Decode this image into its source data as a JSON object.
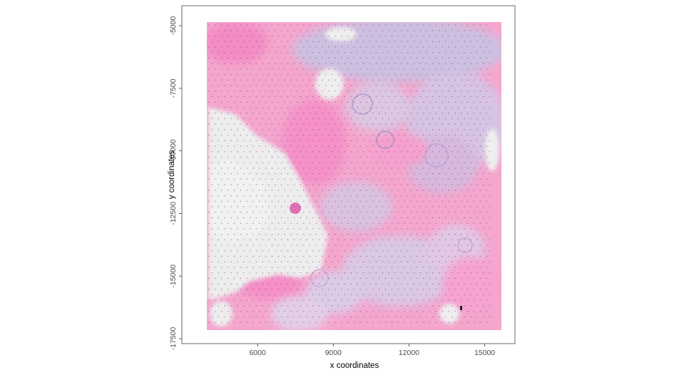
{
  "chart_data": {
    "type": "scatter",
    "title": "",
    "xlabel": "x coordinates",
    "ylabel": "y coordinates",
    "xlim": [
      3000,
      16200
    ],
    "ylim": [
      -17700,
      -4200
    ],
    "x_ticks": [
      6000,
      9000,
      12000,
      15000
    ],
    "y_ticks": [
      -5000,
      -7500,
      -10000,
      -12500,
      -15000,
      -17500
    ],
    "x_tick_labels": [
      "6000",
      "9000",
      "12000",
      "15000"
    ],
    "y_tick_labels": [
      "-5000",
      "-7500",
      "-10000",
      "-12500",
      "-15000",
      "-17500"
    ],
    "grid": false,
    "background": "H&E tissue image",
    "tissue_extent": {
      "x": [
        3500,
        15400
      ],
      "y": [
        -17000,
        -4600
      ]
    },
    "spot_grid": {
      "x_start": 3700,
      "x_end": 15300,
      "x_step": 250,
      "y_start": -4750,
      "y_end": -16900,
      "y_step": 220
    },
    "colors": {
      "tissue_pink": "#f59ac8",
      "stroma_pale": "#ececec",
      "tissue_purple": "#c9b7dc",
      "spot": "#6b3a7a"
    }
  }
}
